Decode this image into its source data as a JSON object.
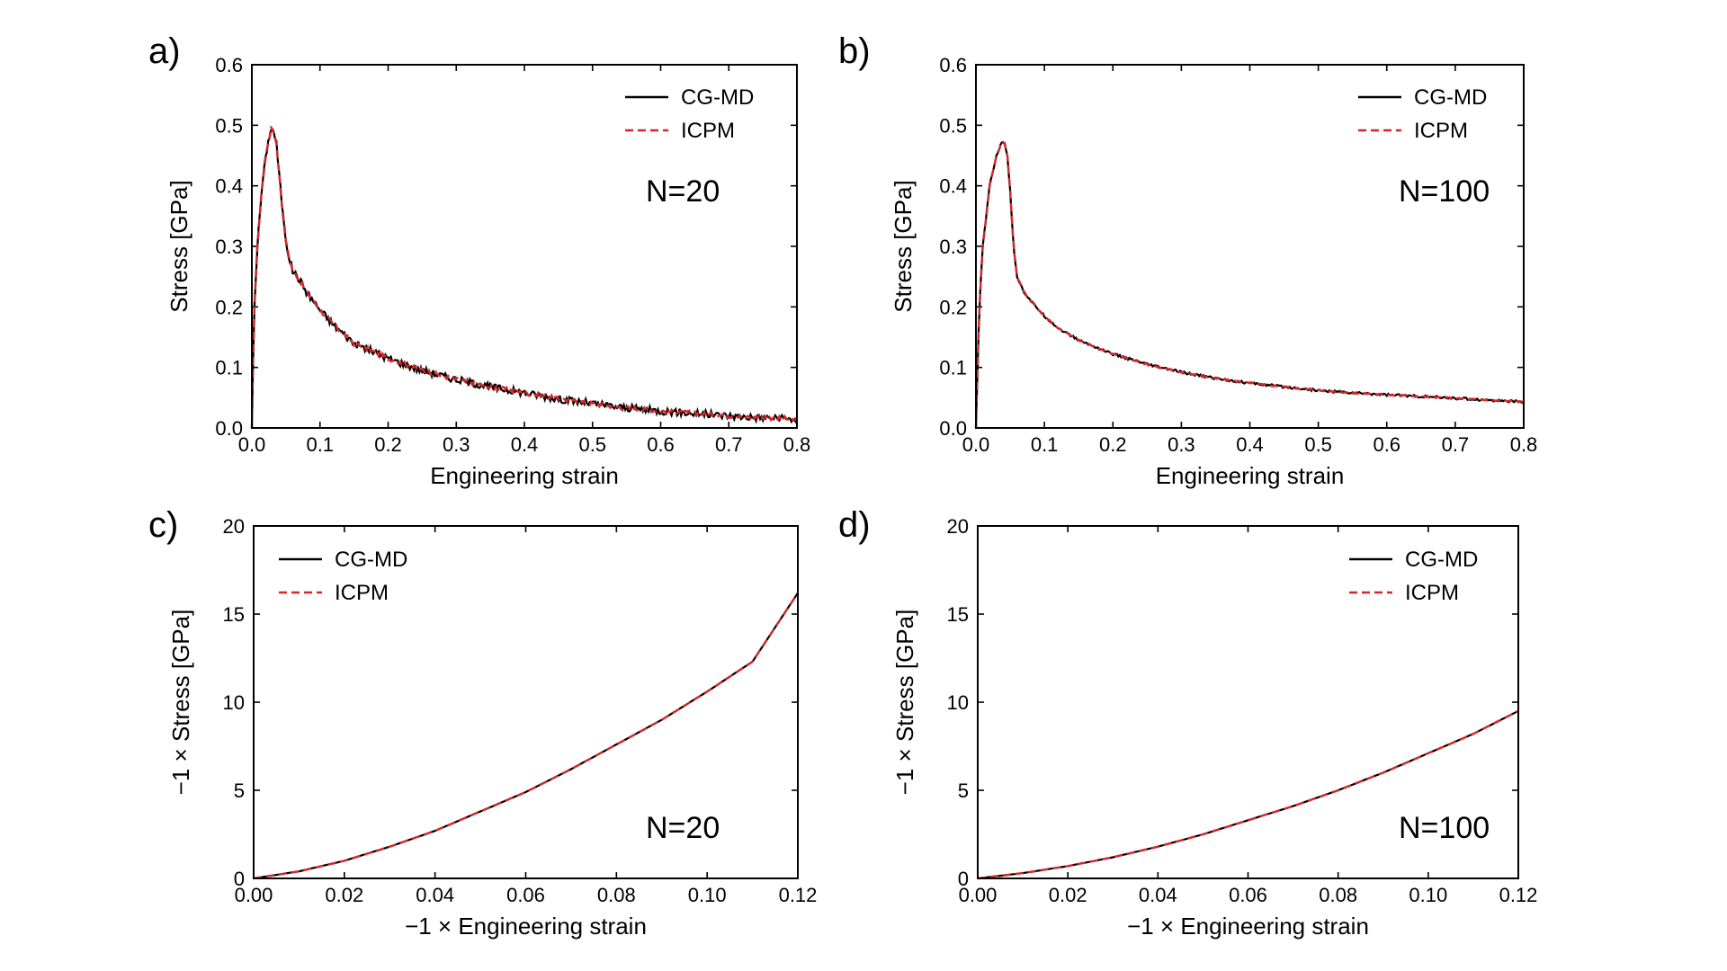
{
  "chart_data": [
    {
      "panel": "a)",
      "type": "line",
      "xlabel": "Engineering strain",
      "ylabel": "Stress [GPa]",
      "xlim": [
        0,
        0.8
      ],
      "ylim": [
        0,
        0.6
      ],
      "xticks": [
        "0.0",
        "0.1",
        "0.2",
        "0.3",
        "0.4",
        "0.5",
        "0.6",
        "0.7",
        "0.8"
      ],
      "yticks": [
        "0.0",
        "0.1",
        "0.2",
        "0.3",
        "0.4",
        "0.5",
        "0.6"
      ],
      "annotation": "N=20",
      "legend_position": "top-right",
      "noise": 0.006,
      "series": [
        {
          "name": "CG-MD",
          "color": "#000000",
          "style": "solid",
          "x": [
            0,
            0.003,
            0.008,
            0.015,
            0.022,
            0.028,
            0.032,
            0.036,
            0.04,
            0.045,
            0.05,
            0.055,
            0.06,
            0.07,
            0.08,
            0.1,
            0.12,
            0.15,
            0.2,
            0.25,
            0.3,
            0.35,
            0.4,
            0.45,
            0.5,
            0.55,
            0.6,
            0.65,
            0.7,
            0.75,
            0.8
          ],
          "y": [
            0,
            0.18,
            0.3,
            0.4,
            0.46,
            0.495,
            0.49,
            0.47,
            0.42,
            0.36,
            0.31,
            0.28,
            0.26,
            0.245,
            0.225,
            0.195,
            0.17,
            0.14,
            0.115,
            0.095,
            0.08,
            0.068,
            0.058,
            0.048,
            0.04,
            0.033,
            0.028,
            0.024,
            0.02,
            0.017,
            0.014
          ]
        },
        {
          "name": "ICPM",
          "color": "#d62728",
          "style": "dashed",
          "x": [
            0,
            0.003,
            0.008,
            0.015,
            0.022,
            0.028,
            0.032,
            0.036,
            0.04,
            0.045,
            0.05,
            0.055,
            0.06,
            0.07,
            0.08,
            0.1,
            0.12,
            0.15,
            0.2,
            0.25,
            0.3,
            0.35,
            0.4,
            0.45,
            0.5,
            0.55,
            0.6,
            0.65,
            0.7,
            0.75,
            0.8
          ],
          "y": [
            0,
            0.18,
            0.3,
            0.4,
            0.46,
            0.495,
            0.49,
            0.47,
            0.42,
            0.36,
            0.31,
            0.28,
            0.26,
            0.245,
            0.225,
            0.195,
            0.17,
            0.14,
            0.115,
            0.095,
            0.08,
            0.068,
            0.058,
            0.048,
            0.04,
            0.033,
            0.028,
            0.024,
            0.02,
            0.017,
            0.014
          ]
        }
      ]
    },
    {
      "panel": "b)",
      "type": "line",
      "xlabel": "Engineering strain",
      "ylabel": "Stress [GPa]",
      "xlim": [
        0,
        0.8
      ],
      "ylim": [
        0,
        0.6
      ],
      "xticks": [
        "0.0",
        "0.1",
        "0.2",
        "0.3",
        "0.4",
        "0.5",
        "0.6",
        "0.7",
        "0.8"
      ],
      "yticks": [
        "0.0",
        "0.1",
        "0.2",
        "0.3",
        "0.4",
        "0.5",
        "0.6"
      ],
      "annotation": "N=100",
      "legend_position": "top-right",
      "noise": 0.002,
      "series": [
        {
          "name": "CG-MD",
          "color": "#000000",
          "style": "solid",
          "x": [
            0,
            0.005,
            0.01,
            0.02,
            0.03,
            0.038,
            0.042,
            0.046,
            0.05,
            0.055,
            0.06,
            0.07,
            0.08,
            0.1,
            0.12,
            0.15,
            0.2,
            0.25,
            0.3,
            0.35,
            0.4,
            0.45,
            0.5,
            0.55,
            0.6,
            0.65,
            0.7,
            0.75,
            0.8
          ],
          "y": [
            0,
            0.2,
            0.3,
            0.4,
            0.45,
            0.472,
            0.47,
            0.45,
            0.39,
            0.3,
            0.25,
            0.225,
            0.21,
            0.185,
            0.165,
            0.145,
            0.122,
            0.105,
            0.092,
            0.082,
            0.074,
            0.068,
            0.062,
            0.058,
            0.055,
            0.052,
            0.049,
            0.046,
            0.043
          ]
        },
        {
          "name": "ICPM",
          "color": "#d62728",
          "style": "dashed",
          "x": [
            0,
            0.005,
            0.01,
            0.02,
            0.03,
            0.038,
            0.042,
            0.046,
            0.05,
            0.055,
            0.06,
            0.07,
            0.08,
            0.1,
            0.12,
            0.15,
            0.2,
            0.25,
            0.3,
            0.35,
            0.4,
            0.45,
            0.5,
            0.55,
            0.6,
            0.65,
            0.7,
            0.75,
            0.8
          ],
          "y": [
            0,
            0.2,
            0.3,
            0.4,
            0.45,
            0.472,
            0.47,
            0.45,
            0.39,
            0.3,
            0.25,
            0.225,
            0.21,
            0.185,
            0.165,
            0.145,
            0.122,
            0.105,
            0.092,
            0.082,
            0.074,
            0.068,
            0.062,
            0.058,
            0.055,
            0.052,
            0.049,
            0.046,
            0.043
          ]
        }
      ]
    },
    {
      "panel": "c)",
      "type": "line",
      "xlabel": "−1 × Engineering strain",
      "ylabel": "−1 × Stress [GPa]",
      "xlim": [
        0,
        0.12
      ],
      "ylim": [
        0,
        20
      ],
      "xticks": [
        "0.00",
        "0.02",
        "0.04",
        "0.06",
        "0.08",
        "0.10",
        "0.12"
      ],
      "yticks": [
        "0",
        "5",
        "10",
        "15",
        "20"
      ],
      "annotation": "N=20",
      "legend_position": "top-left",
      "noise": 0,
      "series": [
        {
          "name": "CG-MD",
          "color": "#000000",
          "style": "solid",
          "x": [
            0,
            0.01,
            0.02,
            0.03,
            0.04,
            0.05,
            0.06,
            0.07,
            0.08,
            0.09,
            0.1,
            0.11,
            0.12
          ],
          "y": [
            0,
            0.4,
            1.0,
            1.8,
            2.7,
            3.8,
            4.9,
            6.2,
            7.6,
            9.0,
            10.6,
            12.3,
            16.2
          ]
        },
        {
          "name": "ICPM",
          "color": "#d62728",
          "style": "dashed",
          "x": [
            0,
            0.01,
            0.02,
            0.03,
            0.04,
            0.05,
            0.06,
            0.07,
            0.08,
            0.09,
            0.1,
            0.11,
            0.12
          ],
          "y": [
            0,
            0.4,
            1.0,
            1.8,
            2.7,
            3.8,
            4.9,
            6.2,
            7.6,
            9.0,
            10.6,
            12.3,
            16.2
          ]
        }
      ]
    },
    {
      "panel": "d)",
      "type": "line",
      "xlabel": "−1 × Engineering strain",
      "ylabel": "−1 × Stress [GPa]",
      "xlim": [
        0,
        0.12
      ],
      "ylim": [
        0,
        20
      ],
      "xticks": [
        "0.00",
        "0.02",
        "0.04",
        "0.06",
        "0.08",
        "0.10",
        "0.12"
      ],
      "yticks": [
        "0",
        "5",
        "10",
        "15",
        "20"
      ],
      "annotation": "N=100",
      "legend_position": "top-right",
      "noise": 0,
      "series": [
        {
          "name": "CG-MD",
          "color": "#000000",
          "style": "solid",
          "x": [
            0,
            0.01,
            0.02,
            0.03,
            0.04,
            0.05,
            0.06,
            0.07,
            0.08,
            0.09,
            0.1,
            0.11,
            0.12
          ],
          "y": [
            0,
            0.3,
            0.7,
            1.2,
            1.8,
            2.5,
            3.3,
            4.1,
            5.0,
            6.0,
            7.1,
            8.2,
            9.5
          ]
        },
        {
          "name": "ICPM",
          "color": "#d62728",
          "style": "dashed",
          "x": [
            0,
            0.01,
            0.02,
            0.03,
            0.04,
            0.05,
            0.06,
            0.07,
            0.08,
            0.09,
            0.1,
            0.11,
            0.12
          ],
          "y": [
            0,
            0.3,
            0.7,
            1.2,
            1.8,
            2.5,
            3.3,
            4.1,
            5.0,
            6.0,
            7.1,
            8.2,
            9.5
          ]
        }
      ]
    }
  ]
}
